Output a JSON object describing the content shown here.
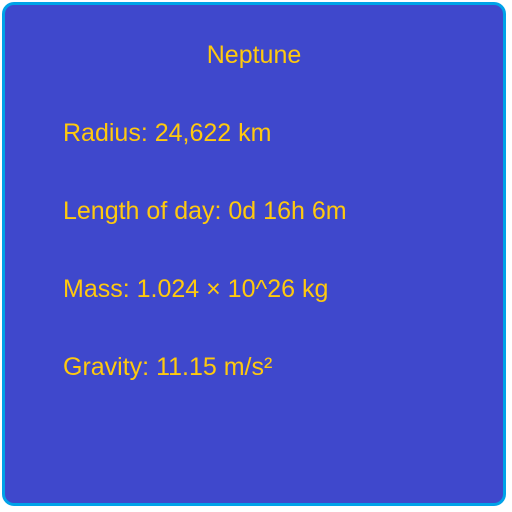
{
  "colors": {
    "card_background": "#3f48cc",
    "card_border": "#00a2e8",
    "text": "#ffc90e"
  },
  "planet": {
    "name": "Neptune",
    "radius": "Radius: 24,622 km",
    "day_length": "Length of day: 0d 16h 6m",
    "mass": "Mass: 1.024 × 10^26 kg",
    "gravity": "Gravity: 11.15 m/s²"
  }
}
